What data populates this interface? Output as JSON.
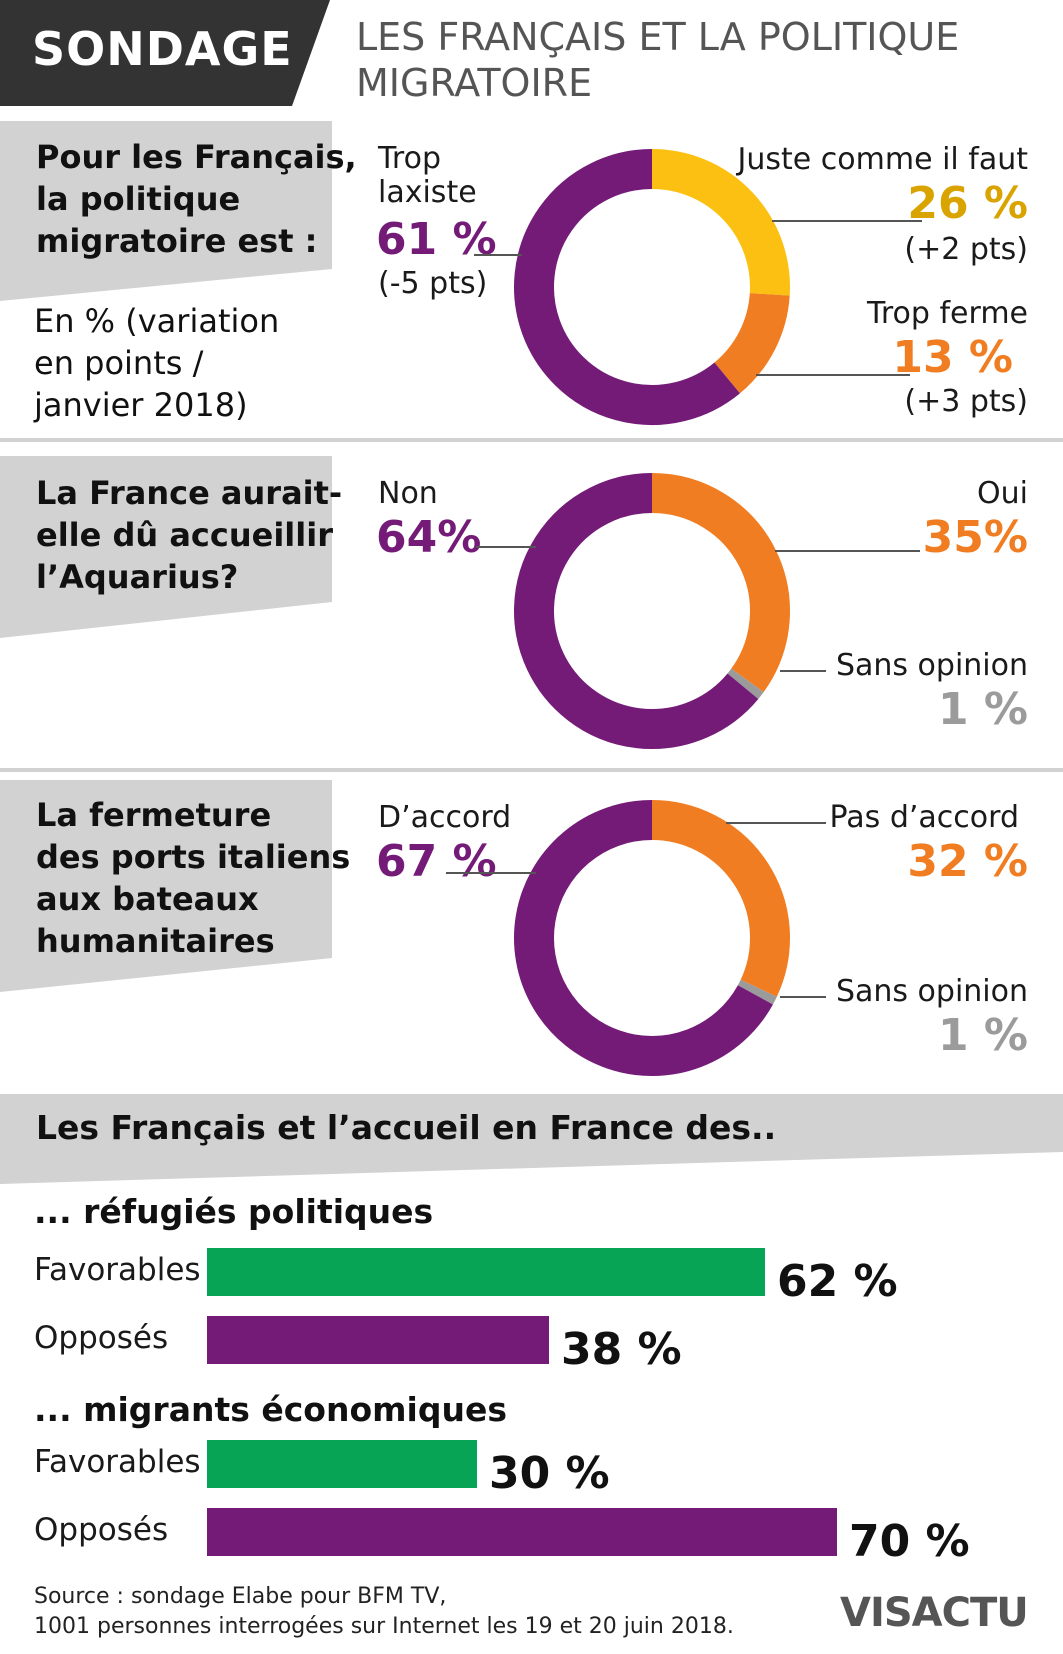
{
  "header": {
    "tag": "SONDAGE",
    "title_line1": "LES FRANÇAIS ET LA POLITIQUE",
    "title_line2": "MIGRATOIRE"
  },
  "colors": {
    "purple": "#741b78",
    "yellow": "#fbc011",
    "orange": "#f07d22",
    "grey": "#9b9b9b",
    "green": "#07a455",
    "dark": "#333333",
    "panel": "#d2d2d2",
    "yellow_text": "#d9a400",
    "purple_text": "#741b78",
    "orange_text": "#f07d22",
    "grey_text": "#9b9b9b"
  },
  "q1": {
    "question": [
      "Pour les Français,",
      "la politique",
      "migratoire est :"
    ],
    "note": [
      "En % (variation",
      "en points /",
      "janvier 2018)"
    ],
    "left_label": [
      "Trop",
      "laxiste"
    ],
    "left_value": "61 %",
    "left_delta": "(-5 pts)",
    "top_right_label": "Juste comme il faut",
    "top_right_value": "26 %",
    "top_right_delta": "(+2 pts)",
    "mid_right_label": "Trop ferme",
    "mid_right_value": "13 %",
    "mid_right_delta": "(+3 pts)"
  },
  "q2": {
    "question": [
      "La France aurait-",
      "elle dû accueillir",
      "l’Aquarius?"
    ],
    "left_label": "Non",
    "left_value": "64%",
    "right_label": "Oui",
    "right_value": "35%",
    "minor_label": "Sans opinion",
    "minor_value": "1 %"
  },
  "q3": {
    "question": [
      "La fermeture",
      "des ports italiens",
      "aux bateaux",
      "humanitaires"
    ],
    "left_label": "D’accord",
    "left_value": "67 %",
    "right_label": "Pas d’accord",
    "right_value": "32 %",
    "minor_label": "Sans opinion",
    "minor_value": "1 %"
  },
  "bars": {
    "heading": "Les Français et l’accueil en France des..",
    "groups": [
      {
        "title": "... réfugiés politiques",
        "rows": [
          {
            "label": "Favorables",
            "value": 62,
            "text": "62 %",
            "color": "green"
          },
          {
            "label": "Opposés",
            "value": 38,
            "text": "38 %",
            "color": "purple"
          }
        ]
      },
      {
        "title": "... migrants économiques",
        "rows": [
          {
            "label": "Favorables",
            "value": 30,
            "text": "30 %",
            "color": "green"
          },
          {
            "label": "Opposés",
            "value": 70,
            "text": "70 %",
            "color": "purple"
          }
        ]
      }
    ]
  },
  "chart_data": [
    {
      "type": "pie",
      "title": "Pour les Français, la politique migratoire est :",
      "categories": [
        "Trop laxiste",
        "Juste comme il faut",
        "Trop ferme"
      ],
      "values": [
        61,
        26,
        13
      ],
      "changes": [
        "-5 pts",
        "+2 pts",
        "+3 pts"
      ]
    },
    {
      "type": "pie",
      "title": "La France aurait-elle dû accueillir l’Aquarius?",
      "categories": [
        "Non",
        "Oui",
        "Sans opinion"
      ],
      "values": [
        64,
        35,
        1
      ]
    },
    {
      "type": "pie",
      "title": "La fermeture des ports italiens aux bateaux humanitaires",
      "categories": [
        "D’accord",
        "Pas d’accord",
        "Sans opinion"
      ],
      "values": [
        67,
        32,
        1
      ]
    },
    {
      "type": "bar",
      "title": "Les Français et l’accueil en France des..",
      "categories": [
        "réfugiés politiques",
        "migrants économiques"
      ],
      "series": [
        {
          "name": "Favorables",
          "values": [
            62,
            30
          ]
        },
        {
          "name": "Opposés",
          "values": [
            38,
            70
          ]
        }
      ]
    }
  ],
  "footer": {
    "source_line1": "Source : sondage Elabe pour BFM TV,",
    "source_line2": "1001 personnes interrogées sur Internet les 19 et 20 juin 2018.",
    "logo": "VISACTU"
  }
}
